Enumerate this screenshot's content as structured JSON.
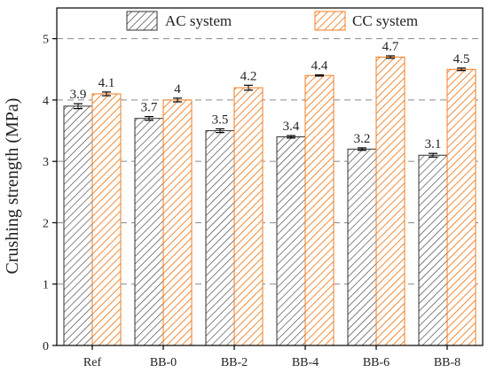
{
  "chart_data": {
    "type": "bar",
    "title": "",
    "xlabel": "",
    "ylabel": "Crushing strength (MPa)",
    "ylim": [
      0,
      5.5
    ],
    "yticks": [
      "0",
      "1",
      "2",
      "3",
      "4",
      "5"
    ],
    "grid": "horizontal dashed",
    "legend_position": "top",
    "categories": [
      "Ref",
      "BB-0",
      "BB-2",
      "BB-4",
      "BB-6",
      "BB-8"
    ],
    "series": [
      {
        "name": "AC system",
        "values": [
          3.9,
          3.7,
          3.5,
          3.4,
          3.2,
          3.1
        ],
        "labels": [
          "3.9",
          "3.7",
          "3.5",
          "3.4",
          "3.2",
          "3.1"
        ],
        "errors": [
          0.04,
          0.03,
          0.03,
          0.02,
          0.02,
          0.03
        ],
        "color": "#333333",
        "fill": "#ffffff"
      },
      {
        "name": "CC system",
        "values": [
          4.1,
          4.0,
          4.2,
          4.4,
          4.7,
          4.5
        ],
        "labels": [
          "4.1",
          "4",
          "4.2",
          "4.4",
          "4.7",
          "4.5"
        ],
        "errors": [
          0.03,
          0.03,
          0.04,
          0.01,
          0.02,
          0.02
        ],
        "color": "#f07d22",
        "fill": "#ffffff"
      }
    ]
  }
}
